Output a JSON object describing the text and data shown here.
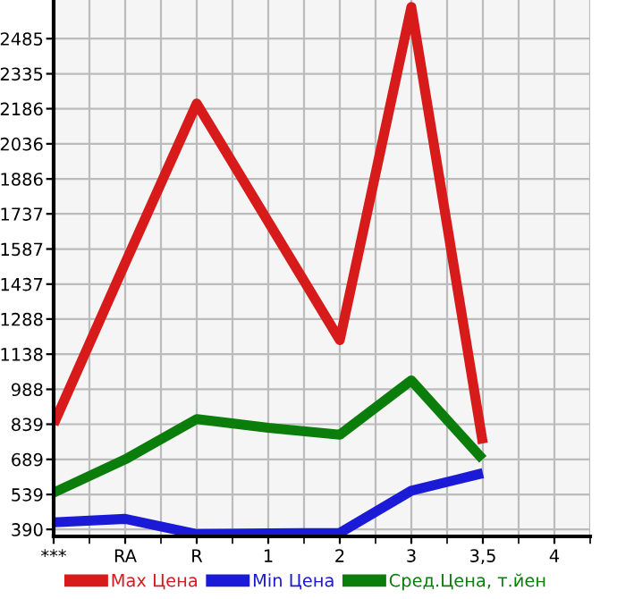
{
  "chart_data": {
    "type": "line",
    "categories": [
      "***",
      "RA",
      "R",
      "1",
      "2",
      "3",
      "3,5",
      "4"
    ],
    "series": [
      {
        "name": "Max Цена",
        "color": "#d71a1a",
        "values": [
          839,
          1527,
          2208,
          1703,
          1198,
          2620,
          757,
          null
        ]
      },
      {
        "name": "Min Цена",
        "color": "#1a1ad7",
        "values": [
          420,
          435,
          370,
          373,
          375,
          555,
          630,
          null
        ]
      },
      {
        "name": "Сред.Цена, т.йен",
        "color": "#0a7d0a",
        "values": [
          547,
          689,
          861,
          824,
          794,
          1026,
          689,
          null
        ]
      }
    ],
    "ylim": [
      360,
      2650
    ],
    "yticks": [
      390,
      539,
      689,
      839,
      988,
      1138,
      1288,
      1437,
      1587,
      1737,
      1886,
      2036,
      2186,
      2335,
      2485
    ],
    "grid": true,
    "legend": "bottom",
    "marker": "none",
    "line_style": "solid"
  }
}
